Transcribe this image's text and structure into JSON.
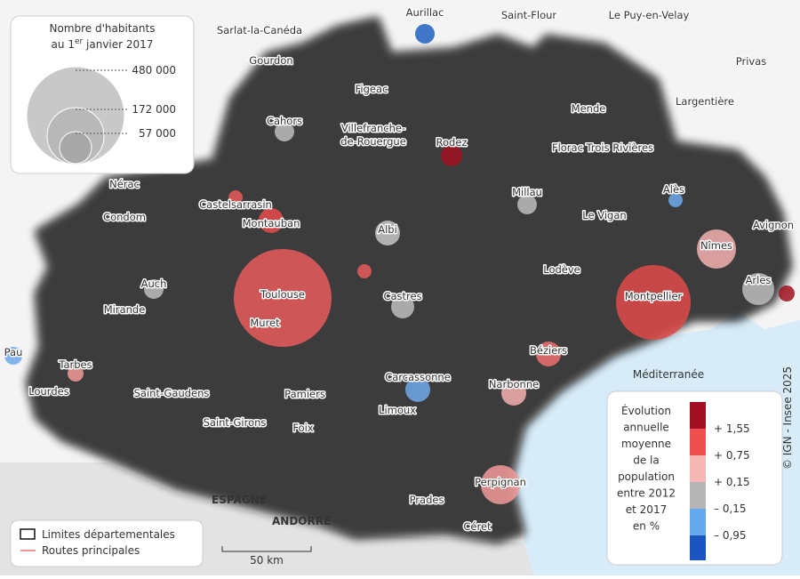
{
  "size_legend": {
    "title_line1": "Nombre d'habitants",
    "title_pre": "au 1",
    "title_sup": "er",
    "title_post": " janvier 2017",
    "items": [
      "480 000",
      "172 000",
      "57 000"
    ]
  },
  "cities": [
    "Sarlat-la-Canéda",
    "Gourdon",
    "Aurillac",
    "Saint-Flour",
    "Le Puy-en-Velay",
    "Privas",
    "Figeac",
    "Cahors",
    "Villefranche-",
    "de-Rouergue",
    "Rodez",
    "Mende",
    "Largentière",
    "Florac Trois Rivières",
    "Nérac",
    "Condom",
    "Castelsarrasin",
    "Montauban",
    "Albi",
    "Millau",
    "Le Vigan",
    "Alès",
    "Nîmes",
    "Avignon",
    "Auch",
    "Toulouse",
    "Castres",
    "Lodève",
    "Montpellier",
    "Arles",
    "Mirande",
    "Muret",
    "Pau",
    "Tarbes",
    "Béziers",
    "Lourdes",
    "Saint-Gaudens",
    "Pamiers",
    "Carcassonne",
    "Narbonne",
    "Limoux",
    "Saint-Girons",
    "Foix",
    "Perpignan",
    "Prades",
    "Céret"
  ],
  "countries": [
    "ESPAGNE",
    "ANDORRE"
  ],
  "sea": "Méditerranée",
  "color_legend": {
    "title": [
      "Évolution",
      "annuelle",
      "moyenne",
      "de la",
      "population",
      "entre 2012",
      "et 2017",
      "en %"
    ],
    "breaks": [
      "+ 1,55",
      "+ 0,75",
      "+ 0,15",
      "– 0,15",
      "– 0,95"
    ]
  },
  "line_legend": [
    "Limites départementales",
    "Routes principales"
  ],
  "scale": "50 km",
  "credit": "© IGN - Insee 2025"
}
